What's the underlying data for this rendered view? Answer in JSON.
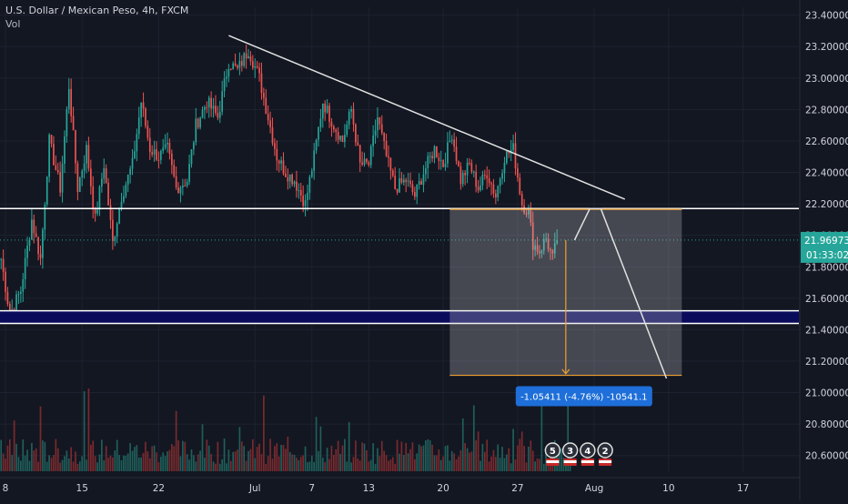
{
  "header": {
    "title": "U.S. Dollar / Mexican Peso, 4h, FXCM",
    "vol_label": "Vol"
  },
  "chart_data": {
    "type": "candlestick",
    "symbol": "U.S. Dollar / Mexican Peso",
    "interval": "4h",
    "source": "FXCM",
    "ylim": [
      20.5,
      23.45
    ],
    "y_ticks": [
      23.4,
      23.2,
      23.0,
      22.8,
      22.6,
      22.4,
      22.2,
      22.0,
      21.8,
      21.6,
      21.4,
      21.2,
      21.0,
      20.8,
      20.6
    ],
    "y_tick_labels": [
      "23.40000",
      "23.20000",
      "23.00000",
      "22.80000",
      "22.60000",
      "22.40000",
      "22.20000",
      "22.00000",
      "21.80000",
      "21.60000",
      "21.40000",
      "21.20000",
      "21.00000",
      "20.80000",
      "20.60000"
    ],
    "x_ticks": [
      {
        "label": "8",
        "bar": 2
      },
      {
        "label": "15",
        "bar": 37
      },
      {
        "label": "22",
        "bar": 72
      },
      {
        "label": "Jul",
        "bar": 116
      },
      {
        "label": "7",
        "bar": 142
      },
      {
        "label": "13",
        "bar": 168
      },
      {
        "label": "20",
        "bar": 202
      },
      {
        "label": "27",
        "bar": 236
      },
      {
        "label": "Aug",
        "bar": 271
      },
      {
        "label": "10",
        "bar": 305
      },
      {
        "label": "17",
        "bar": 339
      }
    ],
    "total_bars": 365,
    "price_points": [
      [
        0,
        21.85
      ],
      [
        4,
        21.5
      ],
      [
        9,
        21.65
      ],
      [
        14,
        22.1
      ],
      [
        18,
        21.85
      ],
      [
        22,
        22.6
      ],
      [
        27,
        22.3
      ],
      [
        31,
        22.95
      ],
      [
        35,
        22.3
      ],
      [
        39,
        22.55
      ],
      [
        43,
        22.1
      ],
      [
        47,
        22.45
      ],
      [
        51,
        21.95
      ],
      [
        55,
        22.25
      ],
      [
        60,
        22.45
      ],
      [
        64,
        22.85
      ],
      [
        68,
        22.55
      ],
      [
        72,
        22.5
      ],
      [
        76,
        22.55
      ],
      [
        80,
        22.3
      ],
      [
        85,
        22.35
      ],
      [
        89,
        22.7
      ],
      [
        94,
        22.85
      ],
      [
        99,
        22.75
      ],
      [
        104,
        23.1
      ],
      [
        108,
        23.05
      ],
      [
        113,
        23.18
      ],
      [
        118,
        23.0
      ],
      [
        122,
        22.75
      ],
      [
        126,
        22.5
      ],
      [
        130,
        22.4
      ],
      [
        134,
        22.35
      ],
      [
        139,
        22.2
      ],
      [
        143,
        22.5
      ],
      [
        147,
        22.85
      ],
      [
        152,
        22.7
      ],
      [
        156,
        22.6
      ],
      [
        160,
        22.8
      ],
      [
        164,
        22.45
      ],
      [
        168,
        22.45
      ],
      [
        172,
        22.75
      ],
      [
        176,
        22.5
      ],
      [
        180,
        22.3
      ],
      [
        185,
        22.35
      ],
      [
        189,
        22.25
      ],
      [
        193,
        22.4
      ],
      [
        198,
        22.55
      ],
      [
        202,
        22.45
      ],
      [
        206,
        22.65
      ],
      [
        210,
        22.35
      ],
      [
        214,
        22.45
      ],
      [
        218,
        22.3
      ],
      [
        222,
        22.4
      ],
      [
        226,
        22.25
      ],
      [
        230,
        22.5
      ],
      [
        234,
        22.55
      ],
      [
        238,
        22.2
      ],
      [
        241,
        22.15
      ],
      [
        243,
        21.95
      ],
      [
        246,
        21.9
      ],
      [
        249,
        21.98
      ],
      [
        252,
        21.85
      ],
      [
        254,
        21.97
      ]
    ],
    "last_price": 21.96973,
    "last_price_label": "21.96973",
    "countdown_label": "01:33:02",
    "horizontal_lines": [
      22.17,
      21.52,
      21.44
    ],
    "support_zone": [
      21.44,
      21.52
    ],
    "trendline": {
      "from": [
        104,
        23.27
      ],
      "to": [
        285,
        22.23
      ]
    },
    "projection_path": [
      [
        262,
        21.97
      ],
      [
        269,
        22.17
      ],
      [
        274,
        22.17
      ],
      [
        304,
        21.09
      ]
    ],
    "measure_box": {
      "x_start": 205,
      "x_end": 311,
      "y_top": 22.165,
      "y_bottom": 21.11,
      "arrow_x": 258,
      "arrow_from": 21.97,
      "arrow_to": 21.12,
      "label": "-1.05411 (-4.76%) -10541.1"
    },
    "event_badges": [
      "5",
      "3",
      "4",
      "2"
    ],
    "volume": {
      "max_label": "",
      "description": "red/green volume histogram per bar"
    }
  },
  "colors": {
    "background": "#131722",
    "grid": "#1e2230",
    "up": "#26a69a",
    "down": "#ef5350",
    "up_volume": "#1f5f5a",
    "down_volume": "#7a2a2e",
    "axis_text": "#d1d4dc",
    "trendline": "#e1e1e1",
    "hline": "#ffffff",
    "support_band": "#0b0b5c",
    "measure_fill": "rgba(200,200,205,0.28)",
    "measure_edge": "#f0a030",
    "measure_label_bg": "#1e6fd9",
    "price_label_bg": "#26a69a",
    "last_price_line": "#26a69a"
  }
}
